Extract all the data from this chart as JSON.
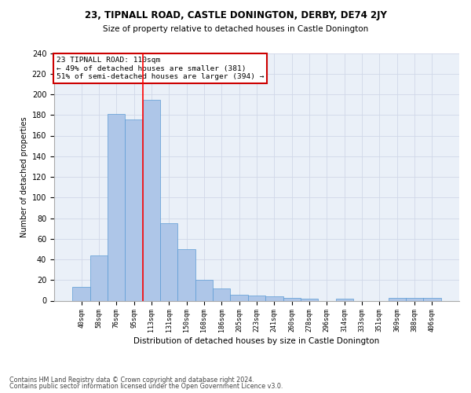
{
  "title1": "23, TIPNALL ROAD, CASTLE DONINGTON, DERBY, DE74 2JY",
  "title2": "Size of property relative to detached houses in Castle Donington",
  "xlabel": "Distribution of detached houses by size in Castle Donington",
  "ylabel": "Number of detached properties",
  "bar_labels": [
    "40sqm",
    "58sqm",
    "76sqm",
    "95sqm",
    "113sqm",
    "131sqm",
    "150sqm",
    "168sqm",
    "186sqm",
    "205sqm",
    "223sqm",
    "241sqm",
    "260sqm",
    "278sqm",
    "296sqm",
    "314sqm",
    "333sqm",
    "351sqm",
    "369sqm",
    "388sqm",
    "406sqm"
  ],
  "bar_values": [
    13,
    44,
    181,
    176,
    195,
    75,
    50,
    20,
    12,
    6,
    5,
    4,
    3,
    2,
    0,
    2,
    0,
    0,
    3,
    3,
    3
  ],
  "bar_color": "#aec6e8",
  "bar_edge_color": "#5b9bd5",
  "grid_color": "#d0d8e8",
  "bg_color": "#eaf0f8",
  "red_line_x": 3.5,
  "annotation_text": "23 TIPNALL ROAD: 110sqm\n← 49% of detached houses are smaller (381)\n51% of semi-detached houses are larger (394) →",
  "annotation_box_color": "#ffffff",
  "annotation_box_edge": "#cc0000",
  "footer1": "Contains HM Land Registry data © Crown copyright and database right 2024.",
  "footer2": "Contains public sector information licensed under the Open Government Licence v3.0.",
  "ylim": [
    0,
    240
  ],
  "yticks": [
    0,
    20,
    40,
    60,
    80,
    100,
    120,
    140,
    160,
    180,
    200,
    220,
    240
  ],
  "title1_fontsize": 8.5,
  "title2_fontsize": 7.5,
  "xlabel_fontsize": 7.5,
  "ylabel_fontsize": 7.0,
  "xtick_fontsize": 6.0,
  "ytick_fontsize": 7.0,
  "annotation_fontsize": 6.8,
  "footer_fontsize": 5.8
}
